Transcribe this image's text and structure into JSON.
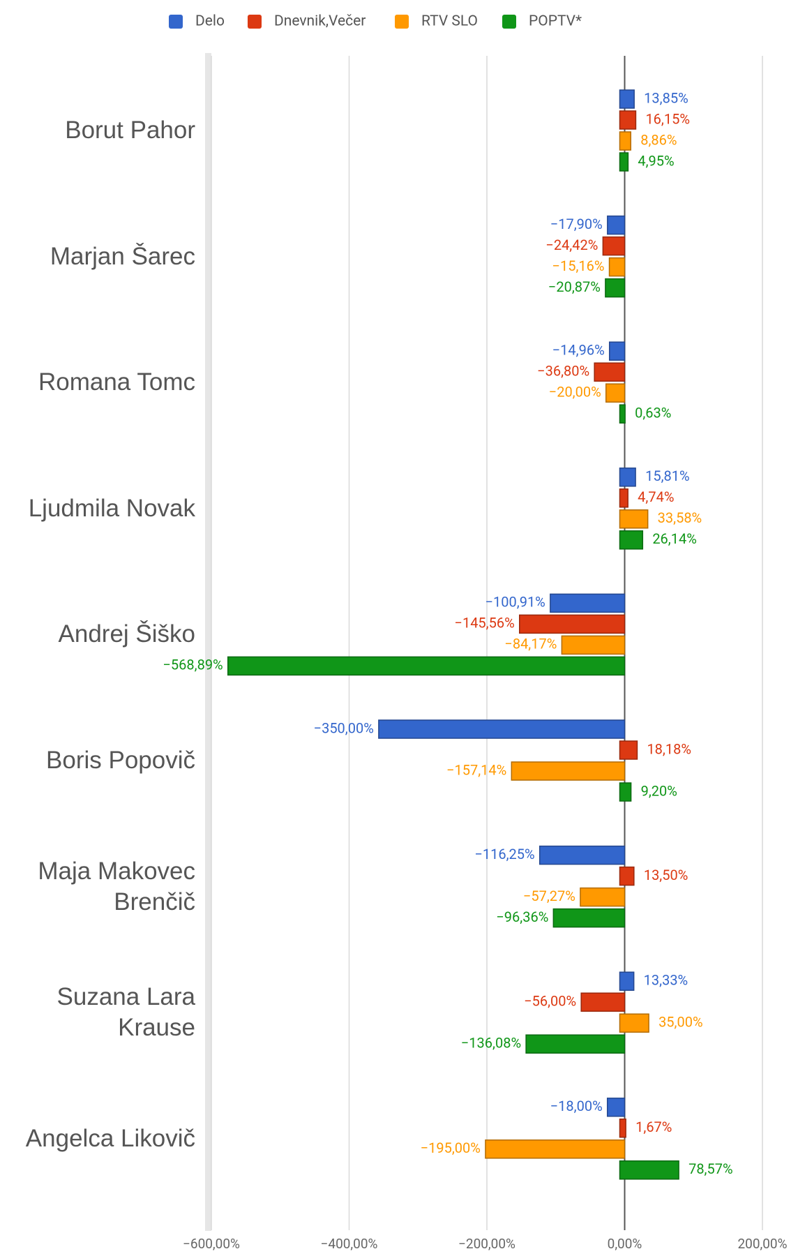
{
  "chart_data": {
    "type": "bar",
    "orientation": "horizontal",
    "categories": [
      "Borut Pahor",
      "Marjan Šarec",
      "Romana Tomc",
      "Ljudmila Novak",
      "Andrej Šiško",
      "Boris Popovič",
      "Maja Makovec Brenčič",
      "Suzana Lara Krause",
      "Angelca Likovič"
    ],
    "series": [
      {
        "name": "Delo",
        "color": "#3366cc",
        "values": [
          13.85,
          -17.9,
          -14.96,
          15.81,
          -100.91,
          -350,
          -116.25,
          13.33,
          -18
        ],
        "value_labels": [
          "13,85%",
          "−17,90%",
          "−14,96%",
          "15,81%",
          "−100,91%",
          "−350,00%",
          "−116,25%",
          "13,33%",
          "−18,00%"
        ]
      },
      {
        "name": "Dnevnik,Večer",
        "color": "#dc3912",
        "values": [
          16.15,
          -24.42,
          -36.8,
          4.74,
          -145.56,
          18.18,
          13.5,
          -56,
          1.67
        ],
        "value_labels": [
          "16,15%",
          "−24,42%",
          "−36,80%",
          "4,74%",
          "−145,56%",
          "18,18%",
          "13,50%",
          "−56,00%",
          "1,67%"
        ]
      },
      {
        "name": "RTV SLO",
        "color": "#ff9900",
        "values": [
          8.86,
          -15.16,
          -20,
          33.58,
          -84.17,
          -157.14,
          -57.27,
          35,
          -195
        ],
        "value_labels": [
          "8,86%",
          "−15,16%",
          "−20,00%",
          "33,58%",
          "−84,17%",
          "−157,14%",
          "−57,27%",
          "35,00%",
          "−195,00%"
        ]
      },
      {
        "name": "POPTV*",
        "color": "#109618",
        "values": [
          4.95,
          -20.87,
          0.63,
          26.14,
          -568.89,
          9.2,
          -96.36,
          -136.08,
          78.57
        ],
        "value_labels": [
          "4,95%",
          "−20,87%",
          "0,63%",
          "26,14%",
          "−568,89%",
          "9,20%",
          "−96,36%",
          "−136,08%",
          "78,57%"
        ]
      }
    ],
    "xlim": [
      -600,
      200
    ],
    "xticks": [
      {
        "value": -600,
        "label": "−600,00%"
      },
      {
        "value": -400,
        "label": "−400,00%"
      },
      {
        "value": -200,
        "label": "−200,00%"
      },
      {
        "value": 0,
        "label": "0,00%"
      },
      {
        "value": 200,
        "label": "200,00%"
      }
    ],
    "grid": true,
    "legend": "top"
  }
}
